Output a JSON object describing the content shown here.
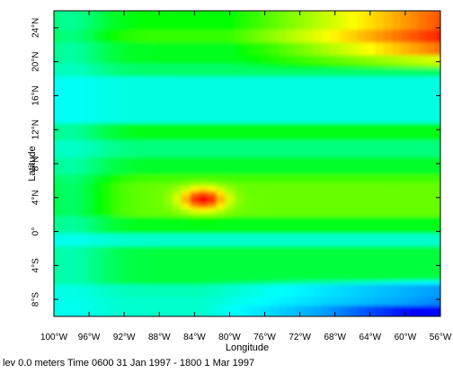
{
  "chart_data": {
    "type": "heatmap",
    "title": "",
    "xlabel": "Longitude",
    "ylabel": "Latitude",
    "x_range": [
      -100,
      -56
    ],
    "y_range": [
      -10,
      26
    ],
    "x_ticks": [
      {
        "value": -100,
        "label": "100°W"
      },
      {
        "value": -96,
        "label": "96°W"
      },
      {
        "value": -92,
        "label": "92°W"
      },
      {
        "value": -88,
        "label": "88°W"
      },
      {
        "value": -84,
        "label": "84°W"
      },
      {
        "value": -80,
        "label": "80°W"
      },
      {
        "value": -76,
        "label": "76°W"
      },
      {
        "value": -72,
        "label": "72°W"
      },
      {
        "value": -68,
        "label": "68°W"
      },
      {
        "value": -64,
        "label": "64°W"
      },
      {
        "value": -60,
        "label": "60°W"
      },
      {
        "value": -56,
        "label": "56°W"
      }
    ],
    "y_ticks": [
      {
        "value": -8,
        "label": "8°S"
      },
      {
        "value": -4,
        "label": "4°S"
      },
      {
        "value": 0,
        "label": "0°"
      },
      {
        "value": 4,
        "label": "4°N"
      },
      {
        "value": 8,
        "label": "8°N"
      },
      {
        "value": 12,
        "label": "12°N"
      },
      {
        "value": 16,
        "label": "16°N"
      },
      {
        "value": 20,
        "label": "20°N"
      },
      {
        "value": 24,
        "label": "24°N"
      }
    ],
    "colormap": [
      "#0000ff",
      "#00a0ff",
      "#00ffff",
      "#00ff80",
      "#00ff00",
      "#80ff00",
      "#ffff00",
      "#ff8000",
      "#ff0000"
    ],
    "grid": false,
    "legend": "none",
    "caption": "lev 0.0 meters Time 0600 31 Jan 1997 - 1800 1 Mar 1997"
  }
}
